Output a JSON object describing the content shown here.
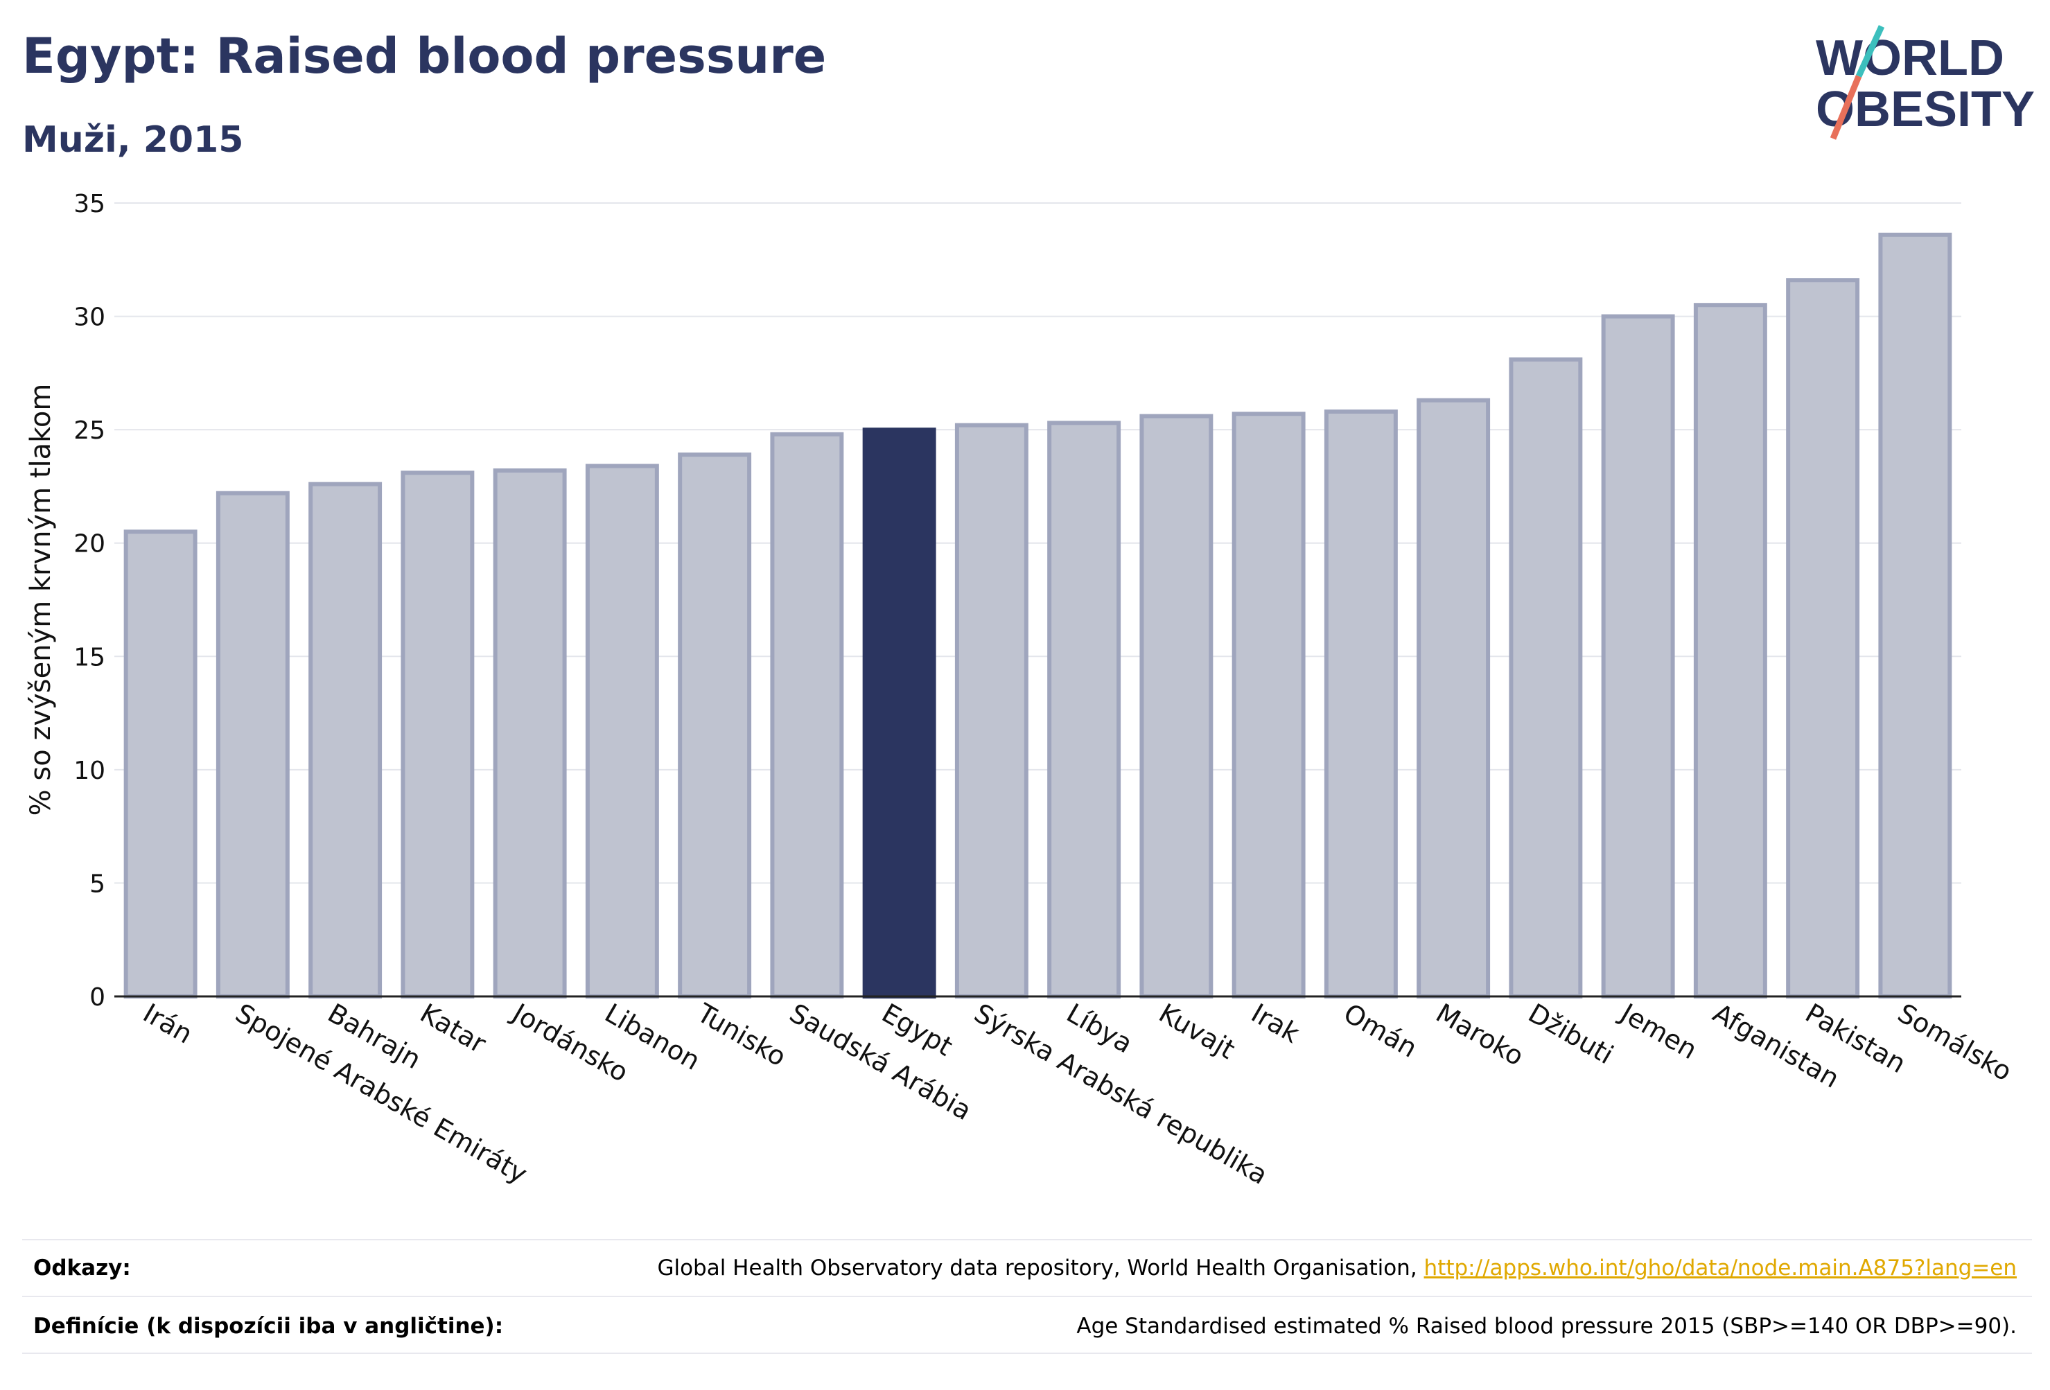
{
  "title": "Egypt: Raised blood pressure",
  "subtitle": "Muži, 2015",
  "logo": {
    "line1": "WORLD",
    "line2": "OBESITY",
    "colors": [
      "#2b3560",
      "#3cbfbd",
      "#e8705a"
    ]
  },
  "chart_data": {
    "type": "bar",
    "ylabel": "% so zvýšeným krvným tlakom",
    "xlabel": "",
    "ylim": [
      0,
      35
    ],
    "yticks": [
      0,
      5,
      10,
      15,
      20,
      25,
      30,
      35
    ],
    "grid": true,
    "highlight": "Egypt",
    "colors": {
      "bar": "#bfc3d0",
      "bar_border": "#9fa5bd",
      "highlight": "#2b3560"
    },
    "categories": [
      "Irán",
      "Spojené Arabské Emiráty",
      "Bahrajn",
      "Katar",
      "Jordánsko",
      "Libanon",
      "Tunisko",
      "Saudská Arábia",
      "Egypt",
      "Sýrska Arabská republika",
      "Líbya",
      "Kuvajt",
      "Irak",
      "Omán",
      "Maroko",
      "Džibuti",
      "Jemen",
      "Afganistan",
      "Pakistan",
      "Somálsko"
    ],
    "values": [
      20.5,
      22.2,
      22.6,
      23.1,
      23.2,
      23.4,
      23.9,
      24.8,
      25.0,
      25.2,
      25.3,
      25.6,
      25.7,
      25.8,
      26.3,
      28.1,
      30.0,
      30.5,
      31.6,
      33.6
    ]
  },
  "footer": {
    "sources_label": "Odkazy:",
    "sources_text": "Global Health Observatory data repository, World Health Organisation, ",
    "sources_link": "http://apps.who.int/gho/data/node.main.A875?lang=en",
    "definitions_label": "Definície (k dispozícii iba v angličtine):",
    "definitions_text": "Age Standardised estimated % Raised blood pressure 2015 (SBP>=140 OR DBP>=90)."
  }
}
